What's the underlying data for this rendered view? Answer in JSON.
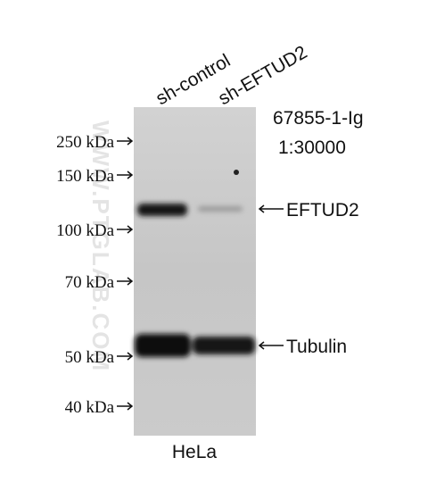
{
  "lanes": [
    "sh-control",
    "sh-EFTUD2"
  ],
  "antibody": {
    "catalog": "67855-1-Ig",
    "dilution": "1:30000"
  },
  "markers": [
    "250 kDa",
    "150 kDa",
    "100 kDa",
    "70 kDa",
    "50 kDa",
    "40 kDa"
  ],
  "bands": [
    "EFTUD2",
    "Tubulin"
  ],
  "sample": "HeLa",
  "watermark": "WWW.PTGLAB.COM"
}
